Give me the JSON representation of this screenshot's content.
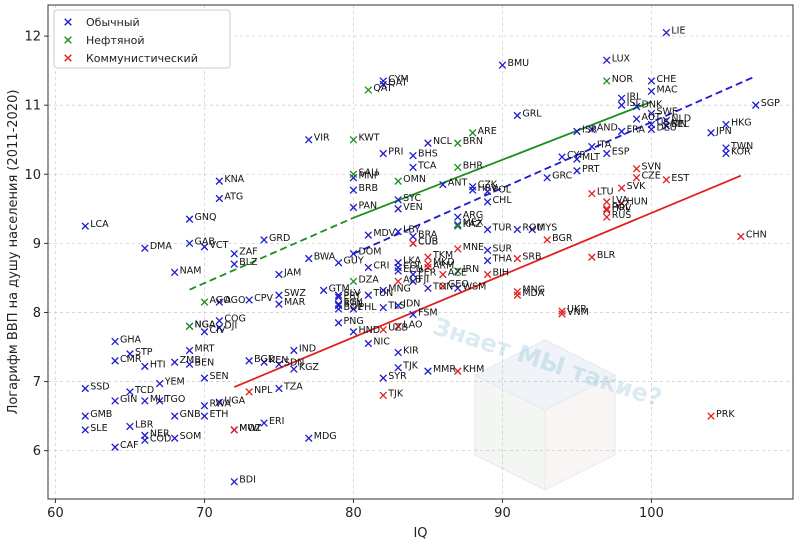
{
  "chart_data": {
    "type": "scatter",
    "xlabel": "IQ",
    "ylabel": "Логарифм ВВП на душу населения (2011-2020)",
    "xlim": [
      59.5,
      109.5
    ],
    "ylim": [
      5.3,
      12.45
    ],
    "xticks": [
      60,
      70,
      80,
      90,
      100
    ],
    "yticks": [
      6,
      7,
      8,
      9,
      10,
      11,
      12
    ],
    "grid": true,
    "legend_position": "top-left",
    "colors": {
      "normal": "#1c1ccc",
      "oil": "#1b8f1b",
      "communist": "#e02020"
    },
    "series": [
      {
        "name": "Обычный",
        "key": "normal",
        "points": [
          [
            "LIE",
            101,
            12.05
          ],
          [
            "LUX",
            97,
            11.65
          ],
          [
            "BMU",
            90,
            11.58
          ],
          [
            "CHE",
            100,
            11.35
          ],
          [
            "MAC",
            100,
            11.2
          ],
          [
            "IRL",
            98,
            11.1
          ],
          [
            "ISL",
            98,
            11.0
          ],
          [
            "DNK",
            99,
            10.98
          ],
          [
            "SWE",
            100,
            10.88
          ],
          [
            "AUT",
            99,
            10.8
          ],
          [
            "NLD",
            101,
            10.78
          ],
          [
            "USA",
            100,
            10.72
          ],
          [
            "FIN",
            101,
            10.7
          ],
          [
            "DEU",
            100,
            10.65
          ],
          [
            "BEL",
            101,
            10.7
          ],
          [
            "SGP",
            107,
            11.0
          ],
          [
            "HKG",
            105,
            10.72
          ],
          [
            "JPN",
            104,
            10.6
          ],
          [
            "TWN",
            105,
            10.38
          ],
          [
            "KOR",
            105,
            10.3
          ],
          [
            "GRL",
            91,
            10.85
          ],
          [
            "ISR",
            95,
            10.62
          ],
          [
            "AND",
            96,
            10.65
          ],
          [
            "FRA",
            98,
            10.62
          ],
          [
            "CYM",
            82,
            11.35
          ],
          [
            "QAT",
            82,
            11.3
          ],
          [
            "VIR",
            77,
            10.5
          ],
          [
            "PRI",
            82,
            10.3
          ],
          [
            "NCL",
            85,
            10.45
          ],
          [
            "BHS",
            84,
            10.27
          ],
          [
            "TCA",
            84,
            10.1
          ],
          [
            "ITA",
            96,
            10.4
          ],
          [
            "CYP",
            94,
            10.25
          ],
          [
            "MLT",
            95,
            10.22
          ],
          [
            "PRT",
            95,
            10.05
          ],
          [
            "GRC",
            93,
            9.95
          ],
          [
            "ESP",
            97,
            10.3
          ],
          [
            "MNP",
            80,
            9.95
          ],
          [
            "BRB",
            80,
            9.77
          ],
          [
            "SYC",
            83,
            9.63
          ],
          [
            "VEN",
            83,
            9.5
          ],
          [
            "ANT",
            86,
            9.85
          ],
          [
            "HRV",
            88,
            9.77
          ],
          [
            "CZK",
            88,
            9.82
          ],
          [
            "POL",
            89,
            9.75
          ],
          [
            "CHL",
            89,
            9.6
          ],
          [
            "PAN",
            80,
            9.52
          ],
          [
            "ATG",
            71,
            9.65
          ],
          [
            "KNA",
            71,
            9.9
          ],
          [
            "GNQ",
            69,
            9.35
          ],
          [
            "LCA",
            62,
            9.25
          ],
          [
            "ARG",
            87,
            9.38
          ],
          [
            "MEX",
            87,
            9.27
          ],
          [
            "TUR",
            89,
            9.2
          ],
          [
            "ROU",
            91,
            9.2
          ],
          [
            "MYS",
            92,
            9.2
          ],
          [
            "MDV",
            81,
            9.12
          ],
          [
            "LBY",
            83,
            9.17
          ],
          [
            "BRA",
            84,
            9.1
          ],
          [
            "GAB",
            69,
            9.0
          ],
          [
            "VCT",
            70,
            8.95
          ],
          [
            "DMA",
            66,
            8.93
          ],
          [
            "GRD",
            74,
            9.05
          ],
          [
            "ZAF",
            72,
            8.85
          ],
          [
            "DOM",
            80,
            8.85
          ],
          [
            "BWA",
            77,
            8.78
          ],
          [
            "GUY",
            79,
            8.72
          ],
          [
            "SUR",
            89,
            8.9
          ],
          [
            "THA",
            89,
            8.75
          ],
          [
            "BLZ",
            72,
            8.7
          ],
          [
            "NAM",
            68,
            8.58
          ],
          [
            "JAM",
            75,
            8.55
          ],
          [
            "CRI",
            81,
            8.65
          ],
          [
            "COL",
            83,
            8.65
          ],
          [
            "ECU",
            83,
            8.6
          ],
          [
            "FJI",
            84,
            8.45
          ],
          [
            "PER",
            84,
            8.55
          ],
          [
            "CUB",
            84,
            9.0
          ],
          [
            "LKA",
            83,
            8.72
          ],
          [
            "IDN",
            83,
            8.1
          ],
          [
            "MNG",
            82,
            8.32
          ],
          [
            "SWZ",
            75,
            8.25
          ],
          [
            "MAR",
            75,
            8.12
          ],
          [
            "SLV",
            79,
            8.25
          ],
          [
            "GTM",
            78,
            8.32
          ],
          [
            "PRY",
            79,
            8.22
          ],
          [
            "BTN",
            79,
            8.1
          ],
          [
            "EGY",
            79,
            8.12
          ],
          [
            "TUN",
            81,
            8.25
          ],
          [
            "PHL",
            80,
            8.05
          ],
          [
            "BOL",
            79,
            8.05
          ],
          [
            "TLS",
            82,
            8.07
          ],
          [
            "TON",
            85,
            8.35
          ],
          [
            "FSM",
            84,
            7.97
          ],
          [
            "WSM",
            87,
            8.35
          ],
          [
            "CPV",
            73,
            8.18
          ],
          [
            "AGO",
            71,
            8.15
          ],
          [
            "COG",
            71,
            7.88
          ],
          [
            "DJI",
            71,
            7.78
          ],
          [
            "PNG",
            79,
            7.85
          ],
          [
            "HND",
            80,
            7.72
          ],
          [
            "NIC",
            81,
            7.55
          ],
          [
            "IND",
            76,
            7.45
          ],
          [
            "BGD",
            73,
            7.3
          ],
          [
            "KEN",
            74,
            7.28
          ],
          [
            "ZMB",
            68,
            7.28
          ],
          [
            "CIV",
            70,
            7.72
          ],
          [
            "NGA",
            69,
            7.8
          ],
          [
            "MRT",
            69,
            7.45
          ],
          [
            "GHA",
            64,
            7.58
          ],
          [
            "STP",
            65,
            7.4
          ],
          [
            "CMR",
            64,
            7.3
          ],
          [
            "HTI",
            66,
            7.22
          ],
          [
            "BEN",
            69,
            7.25
          ],
          [
            "SEN",
            70,
            7.05
          ],
          [
            "KGZ",
            76,
            7.18
          ],
          [
            "SDN",
            75,
            7.25
          ],
          [
            "TZA",
            75,
            6.9
          ],
          [
            "KIR",
            83,
            7.42
          ],
          [
            "SYR",
            82,
            7.05
          ],
          [
            "TJK",
            83,
            7.2
          ],
          [
            "YEM",
            67,
            6.97
          ],
          [
            "TCD",
            65,
            6.85
          ],
          [
            "MLI",
            66,
            6.72
          ],
          [
            "TGO",
            67,
            6.72
          ],
          [
            "GIN",
            64,
            6.72
          ],
          [
            "SSD",
            62,
            6.9
          ],
          [
            "GMB",
            62,
            6.5
          ],
          [
            "SLE",
            62,
            6.3
          ],
          [
            "LBR",
            65,
            6.35
          ],
          [
            "NER",
            66,
            6.22
          ],
          [
            "COD",
            66,
            6.15
          ],
          [
            "SOM",
            68,
            6.18
          ],
          [
            "ETH",
            70,
            6.5
          ],
          [
            "GNB",
            68,
            6.5
          ],
          [
            "UGA",
            71,
            6.7
          ],
          [
            "RWA",
            70,
            6.65
          ],
          [
            "MWI",
            72,
            6.3
          ],
          [
            "ERI",
            74,
            6.4
          ],
          [
            "MDG",
            77,
            6.18
          ],
          [
            "MMR",
            85,
            7.15
          ],
          [
            "CAF",
            64,
            6.05
          ],
          [
            "BDI",
            72,
            5.55
          ]
        ]
      },
      {
        "name": "Нефтяной",
        "key": "oil",
        "points": [
          [
            "NOR",
            97,
            11.35
          ],
          [
            "ARE",
            88,
            10.6
          ],
          [
            "KWT",
            80,
            10.5
          ],
          [
            "BRN",
            87,
            10.45
          ],
          [
            "OMN",
            83,
            9.9
          ],
          [
            "SAU",
            80,
            10.0
          ],
          [
            "BHR",
            87,
            10.1
          ],
          [
            "KAZ",
            87,
            9.25
          ],
          [
            "IRN",
            87,
            8.6
          ],
          [
            "DZA",
            80,
            8.45
          ],
          [
            "AGO",
            70,
            8.15
          ],
          [
            "NGA",
            69,
            7.8
          ],
          [
            "QAT",
            81,
            11.22
          ]
        ]
      },
      {
        "name": "Коммунистический",
        "key": "communist",
        "points": [
          [
            "SVN",
            99,
            10.08
          ],
          [
            "CZE",
            99,
            9.95
          ],
          [
            "EST",
            101,
            9.92
          ],
          [
            "SVK",
            98,
            9.8
          ],
          [
            "LTU",
            96,
            9.72
          ],
          [
            "LVA",
            97,
            9.6
          ],
          [
            "HUN",
            98,
            9.58
          ],
          [
            "POL",
            97,
            9.5
          ],
          [
            "HRV",
            97,
            9.48
          ],
          [
            "RUS",
            97,
            9.38
          ],
          [
            "BGR",
            93,
            9.05
          ],
          [
            "SRB",
            91,
            8.78
          ],
          [
            "BLR",
            96,
            8.8
          ],
          [
            "MNE",
            87,
            8.92
          ],
          [
            "MKD",
            85,
            8.7
          ],
          [
            "BIH",
            89,
            8.55
          ],
          [
            "ALB",
            83,
            8.45
          ],
          [
            "ARM",
            85,
            8.65
          ],
          [
            "AZE",
            86,
            8.55
          ],
          [
            "UKR",
            94,
            8.02
          ],
          [
            "MDA",
            91,
            8.25
          ],
          [
            "VNM",
            94,
            7.98
          ],
          [
            "LAO",
            83,
            7.8
          ],
          [
            "CHN",
            106,
            9.1
          ],
          [
            "KHM",
            87,
            7.15
          ],
          [
            "UZB",
            82,
            7.75
          ],
          [
            "MNG",
            91,
            8.3
          ],
          [
            "GEO",
            86,
            8.38
          ],
          [
            "TJK",
            82,
            6.8
          ],
          [
            "PRK",
            104,
            6.5
          ],
          [
            "NPL",
            73,
            6.85
          ],
          [
            "MOZ",
            72,
            6.3
          ],
          [
            "CUB",
            84,
            9.0
          ],
          [
            "TKM",
            85,
            8.8
          ]
        ]
      }
    ],
    "trendlines": [
      {
        "key": "normal",
        "style": "dashed",
        "x": [
          80,
          107
        ],
        "y": [
          8.85,
          11.42
        ]
      },
      {
        "key": "oil",
        "style": "solid",
        "x": [
          80,
          100
        ],
        "y": [
          9.37,
          11.05
        ]
      },
      {
        "key": "oil",
        "style": "dashed",
        "x": [
          69,
          80
        ],
        "y": [
          8.33,
          9.37
        ]
      },
      {
        "key": "communist",
        "style": "solid",
        "x": [
          72,
          106
        ],
        "y": [
          6.92,
          9.98
        ]
      }
    ]
  },
  "watermark": "Знает МЫ такие?"
}
